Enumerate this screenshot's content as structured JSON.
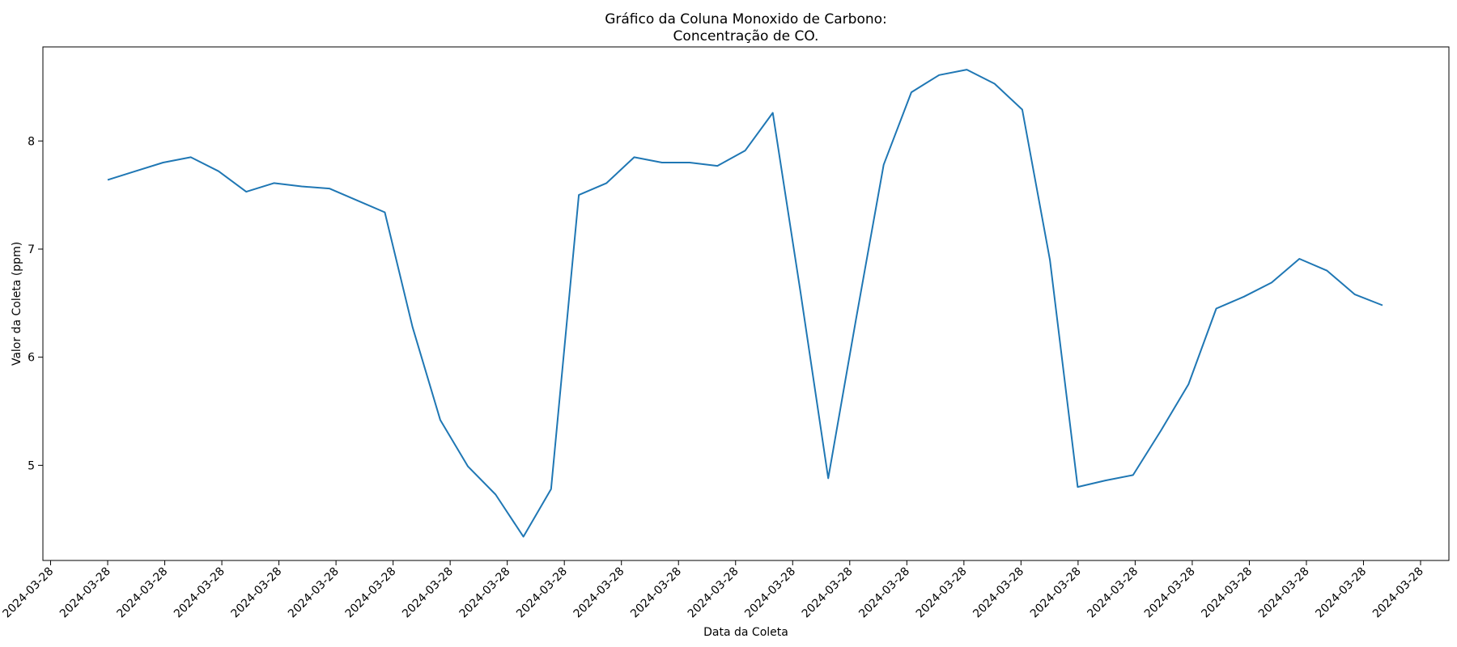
{
  "chart_data": {
    "type": "line",
    "title_lines": [
      "Gráfico da Coluna Monoxido de Carbono:",
      "Concentração de CO."
    ],
    "xlabel": "Data da Coleta",
    "ylabel": "Valor da Coleta (ppm)",
    "ylim": [
      4.12,
      8.87
    ],
    "yticks": [
      5,
      6,
      7,
      8
    ],
    "ytick_labels": [
      "5",
      "6",
      "7",
      "8"
    ],
    "xtick_labels": [
      "2024-03-28",
      "2024-03-28",
      "2024-03-28",
      "2024-03-28",
      "2024-03-28",
      "2024-03-28",
      "2024-03-28",
      "2024-03-28",
      "2024-03-28",
      "2024-03-28",
      "2024-03-28",
      "2024-03-28",
      "2024-03-28",
      "2024-03-28",
      "2024-03-28",
      "2024-03-28",
      "2024-03-28",
      "2024-03-28",
      "2024-03-28",
      "2024-03-28",
      "2024-03-28",
      "2024-03-28",
      "2024-03-28",
      "2024-03-28",
      "2024-03-28"
    ],
    "grid": false,
    "legend": "none",
    "color": "#1f77b4",
    "series": [
      {
        "values": [
          7.64,
          7.72,
          7.8,
          7.85,
          7.72,
          7.53,
          7.61,
          7.58,
          7.56,
          7.45,
          7.34,
          6.28,
          5.42,
          4.99,
          4.73,
          4.34,
          4.78,
          7.5,
          7.61,
          7.85,
          7.8,
          7.8,
          7.77,
          7.91,
          8.26,
          6.6,
          4.88,
          6.35,
          7.78,
          8.45,
          8.61,
          8.66,
          8.53,
          8.29,
          6.9,
          4.8,
          4.86,
          4.91,
          5.32,
          5.75,
          6.45,
          6.56,
          6.69,
          6.91,
          6.8,
          6.58,
          6.48
        ]
      }
    ]
  }
}
